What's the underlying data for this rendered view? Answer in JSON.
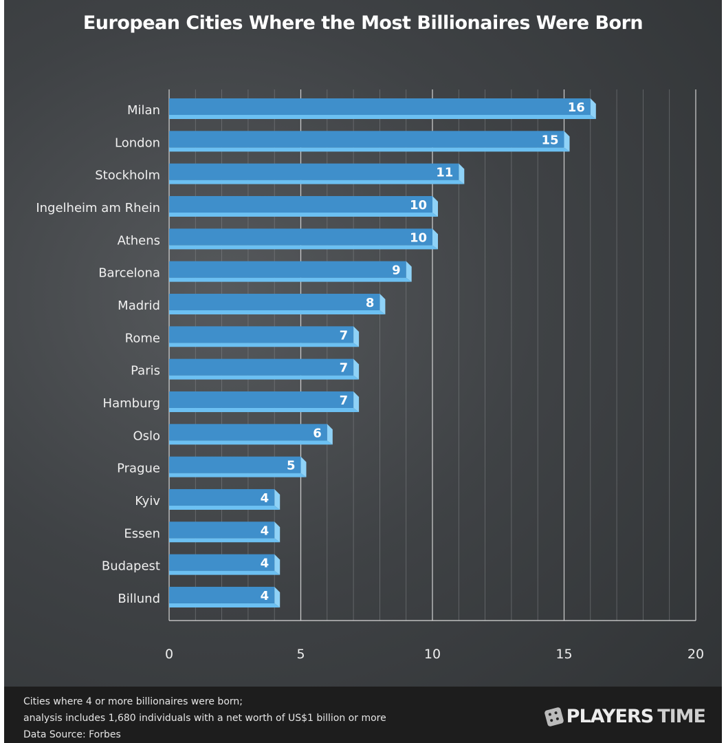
{
  "chart_data": {
    "type": "bar",
    "orientation": "horizontal",
    "title": "European Cities Where the Most Billionaires Were Born",
    "categories": [
      "Milan",
      "London",
      "Stockholm",
      "Ingelheim am Rhein",
      "Athens",
      "Barcelona",
      "Madrid",
      "Rome",
      "Paris",
      "Hamburg",
      "Oslo",
      "Prague",
      "Kyiv",
      "Essen",
      "Budapest",
      "Billund"
    ],
    "values": [
      16,
      15,
      11,
      10,
      10,
      9,
      8,
      7,
      7,
      7,
      6,
      5,
      4,
      4,
      4,
      4
    ],
    "xlim": [
      0,
      20
    ],
    "xticks": [
      "0",
      "5",
      "10",
      "15",
      "20"
    ],
    "xlabel": "",
    "ylabel": "",
    "grid": true,
    "bar_color": "#3f8fcb",
    "bar_edge_color": "#6cc0f2"
  },
  "footer": {
    "note_line1": "Cities where 4 or more billionaires were born;",
    "note_line2": "analysis includes 1,680 individuals with a net worth of US$1 billion or more",
    "source": "Data Source: Forbes",
    "brand_bold": "PLAYERS",
    "brand_light": "TIME"
  }
}
